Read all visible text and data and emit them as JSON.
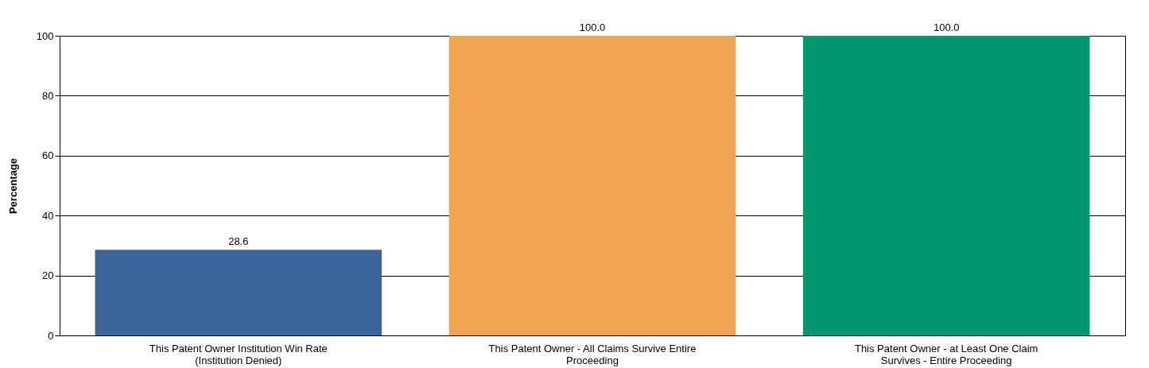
{
  "chart_data": {
    "type": "bar",
    "ylabel": "Percentage",
    "categories": [
      "This Patent Owner Institution Win Rate (Institution Denied)",
      "This Patent Owner - All Claims Survive Entire Proceeding",
      "This Patent Owner - at Least One Claim Survives - Entire Proceeding"
    ],
    "values": [
      28.6,
      100.0,
      100.0
    ],
    "colors": [
      "#3a6699",
      "#efa452",
      "#009670"
    ],
    "value_labels": [
      "28.6",
      "100.0",
      "100.0"
    ],
    "ylim": [
      0,
      100
    ],
    "yticks": [
      0,
      20,
      40,
      60,
      80,
      100
    ],
    "grid": "y",
    "legend": false
  }
}
